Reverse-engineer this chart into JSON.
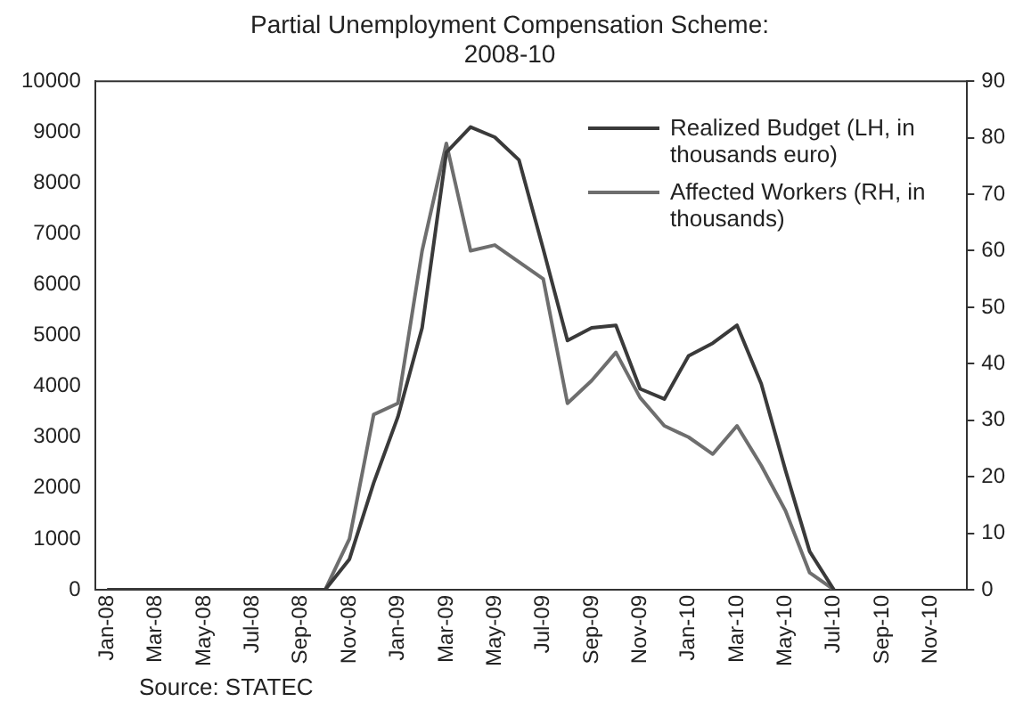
{
  "chart_data": {
    "type": "line",
    "title": "Partial Unemployment Compensation Scheme:\n2008-10",
    "categories": [
      "Jan-08",
      null,
      "Mar-08",
      null,
      "May-08",
      null,
      "Jul-08",
      null,
      "Sep-08",
      null,
      "Nov-08",
      null,
      "Jan-09",
      null,
      "Mar-09",
      null,
      "May-09",
      null,
      "Jul-09",
      null,
      "Sep-09",
      null,
      "Nov-09",
      null,
      "Jan-10",
      null,
      "Mar-10",
      null,
      "May-10",
      null,
      "Jul-10",
      null,
      "Sep-10",
      null,
      "Nov-10",
      null
    ],
    "series": [
      {
        "name": "Realized Budget (LH, in thousands euro)",
        "color": "#3a3a3a",
        "values": [
          0,
          0,
          0,
          0,
          0,
          0,
          0,
          0,
          0,
          0,
          600,
          2100,
          3400,
          5150,
          8600,
          9100,
          8900,
          8450,
          6700,
          4900,
          5150,
          5200,
          3950,
          3750,
          4600,
          4850,
          5200,
          4050,
          2350,
          750,
          0,
          null,
          null,
          null,
          null,
          null
        ]
      },
      {
        "name": "Affected Workers (RH, in thousands)",
        "color": "#6e6e6e",
        "axis": "y2",
        "values": [
          0,
          0,
          0,
          0,
          0,
          0,
          0,
          0,
          0,
          0,
          9,
          31,
          33,
          60,
          79,
          60,
          61,
          58,
          55,
          33,
          37,
          42,
          34,
          29,
          27,
          24,
          29,
          22,
          14,
          3,
          0,
          null,
          null,
          null,
          null,
          null
        ]
      }
    ],
    "ylim": [
      0,
      10000
    ],
    "yticks": [
      0,
      1000,
      2000,
      3000,
      4000,
      5000,
      6000,
      7000,
      8000,
      9000,
      10000
    ],
    "y2lim": [
      0,
      90
    ],
    "y2ticks": [
      0,
      10,
      20,
      30,
      40,
      50,
      60,
      70,
      80,
      90
    ],
    "grid": false,
    "legend": "top right",
    "marker": "none",
    "line_style": "solid",
    "annotations": [
      "Source: STATEC"
    ]
  }
}
